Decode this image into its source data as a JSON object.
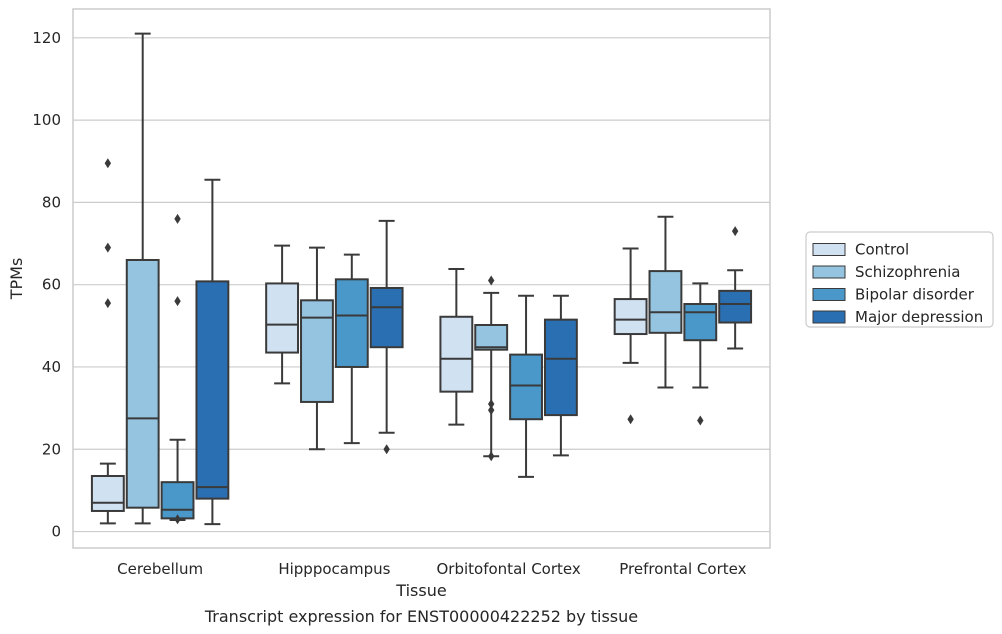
{
  "caption": "Transcript expression for ENST00000422252 by tissue",
  "chart_data": {
    "type": "box",
    "xlabel": "Tissue",
    "ylabel": "TPMs",
    "ylim": [
      -4,
      127
    ],
    "yticks": [
      0,
      20,
      40,
      60,
      80,
      100,
      120
    ],
    "grid": "horizontal",
    "legend_position": "right",
    "categories": [
      "Cerebellum",
      "Hipppocampus",
      "Orbitofontal Cortex",
      "Prefrontal Cortex"
    ],
    "series": [
      {
        "name": "Control",
        "color": "#d0e1f2",
        "boxes": [
          {
            "whislo": 2,
            "q1": 5,
            "med": 7,
            "q3": 13.5,
            "whishi": 16.5,
            "fliers": [
              55.5,
              69,
              89.5
            ]
          },
          {
            "whislo": 36,
            "q1": 43.5,
            "med": 50.3,
            "q3": 60.3,
            "whishi": 69.5,
            "fliers": []
          },
          {
            "whislo": 26,
            "q1": 34,
            "med": 42,
            "q3": 52.2,
            "whishi": 63.8,
            "fliers": []
          },
          {
            "whislo": 41,
            "q1": 48,
            "med": 51.5,
            "q3": 56.5,
            "whishi": 68.8,
            "fliers": [
              27.3
            ]
          }
        ]
      },
      {
        "name": "Schizophrenia",
        "color": "#94c4df",
        "boxes": [
          {
            "whislo": 2,
            "q1": 5.8,
            "med": 27.5,
            "q3": 66,
            "whishi": 121,
            "fliers": []
          },
          {
            "whislo": 20,
            "q1": 31.5,
            "med": 52,
            "q3": 56.2,
            "whishi": 69,
            "fliers": []
          },
          {
            "whislo": 18.3,
            "q1": 44.2,
            "med": 44.8,
            "q3": 50.2,
            "whishi": 58,
            "fliers": [
              18.3,
              29.5,
              31,
              61
            ]
          },
          {
            "whislo": 35,
            "q1": 48.3,
            "med": 53.3,
            "q3": 63.3,
            "whishi": 76.5,
            "fliers": []
          }
        ]
      },
      {
        "name": "Bipolar disorder",
        "color": "#4a98c9",
        "boxes": [
          {
            "whislo": 2.8,
            "q1": 3.2,
            "med": 5.3,
            "q3": 12,
            "whishi": 22.3,
            "fliers": [
              3,
              56,
              76
            ]
          },
          {
            "whislo": 21.5,
            "q1": 40,
            "med": 52.5,
            "q3": 61.3,
            "whishi": 67.3,
            "fliers": []
          },
          {
            "whislo": 13.3,
            "q1": 27.3,
            "med": 35.5,
            "q3": 43,
            "whishi": 57.3,
            "fliers": []
          },
          {
            "whislo": 35,
            "q1": 46.5,
            "med": 53.3,
            "q3": 55.3,
            "whishi": 60.3,
            "fliers": [
              27
            ]
          }
        ]
      },
      {
        "name": "Major depression",
        "color": "#2a6fb2",
        "boxes": [
          {
            "whislo": 1.8,
            "q1": 8,
            "med": 10.8,
            "q3": 60.8,
            "whishi": 85.5,
            "fliers": []
          },
          {
            "whislo": 24,
            "q1": 44.8,
            "med": 54.5,
            "q3": 59.2,
            "whishi": 75.5,
            "fliers": [
              20
            ]
          },
          {
            "whislo": 18.5,
            "q1": 28.3,
            "med": 42,
            "q3": 51.5,
            "whishi": 57.3,
            "fliers": []
          },
          {
            "whislo": 44.5,
            "q1": 50.8,
            "med": 55.3,
            "q3": 58.5,
            "whishi": 63.5,
            "fliers": [
              73
            ]
          }
        ]
      }
    ]
  }
}
